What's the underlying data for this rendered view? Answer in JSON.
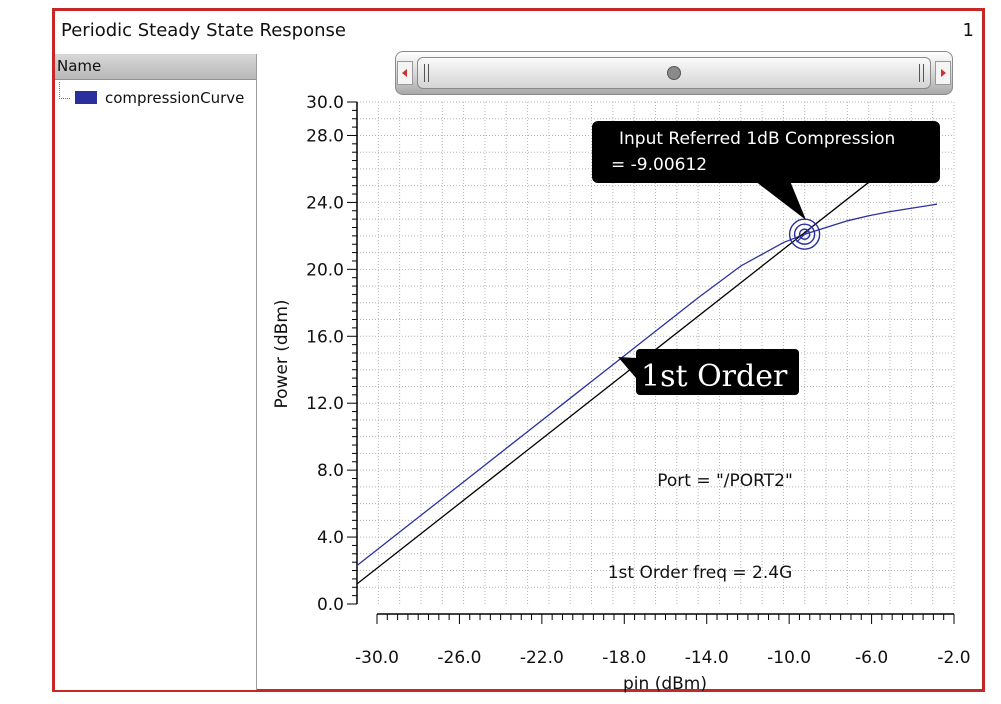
{
  "window": {
    "title": "Periodic Steady State Response",
    "page_number": "1"
  },
  "sidebar": {
    "header": "Name",
    "items": [
      {
        "label": "compressionCurve",
        "color": "#2b2f9e"
      }
    ]
  },
  "chart_data": {
    "type": "line",
    "xlabel": "pin (dBm)",
    "ylabel": "Power (dBm)",
    "xlim": [
      -30,
      -2
    ],
    "ylim": [
      0,
      30
    ],
    "x_ticks": [
      "-30.0",
      "-26.0",
      "-22.0",
      "-18.0",
      "-14.0",
      "-10.0",
      "-6.0",
      "-2.0"
    ],
    "y_ticks": [
      "0.0",
      "4.0",
      "8.0",
      "12.0",
      "16.0",
      "20.0",
      "24.0",
      "28.0",
      "30.0"
    ],
    "grid": true,
    "series": [
      {
        "name": "compressionCurve",
        "color": "#2b2f9e",
        "x": [
          -30,
          -28,
          -26,
          -24,
          -22,
          -20,
          -18,
          -16,
          -14,
          -12,
          -10,
          -9,
          -8,
          -7,
          -6,
          -5,
          -4,
          -3,
          -2.8
        ],
        "y": [
          2.3,
          4.3,
          6.3,
          8.3,
          10.3,
          12.3,
          14.3,
          16.3,
          18.3,
          20.2,
          21.6,
          22.1,
          22.5,
          22.9,
          23.2,
          23.45,
          23.65,
          23.85,
          23.9
        ]
      },
      {
        "name": "1st Order",
        "color": "#000000",
        "x": [
          -30,
          -6
        ],
        "y": [
          1.2,
          25.2
        ]
      }
    ],
    "annotations": {
      "compression_label": [
        "Input Referred 1dB Compression",
        "= -9.00612"
      ],
      "compression_point": {
        "x": -9.00612,
        "y": 22.1
      },
      "first_order_label": "1st Order",
      "port_label": "Port = \"/PORT2\"",
      "freq_label": "1st Order freq = 2.4G"
    }
  }
}
